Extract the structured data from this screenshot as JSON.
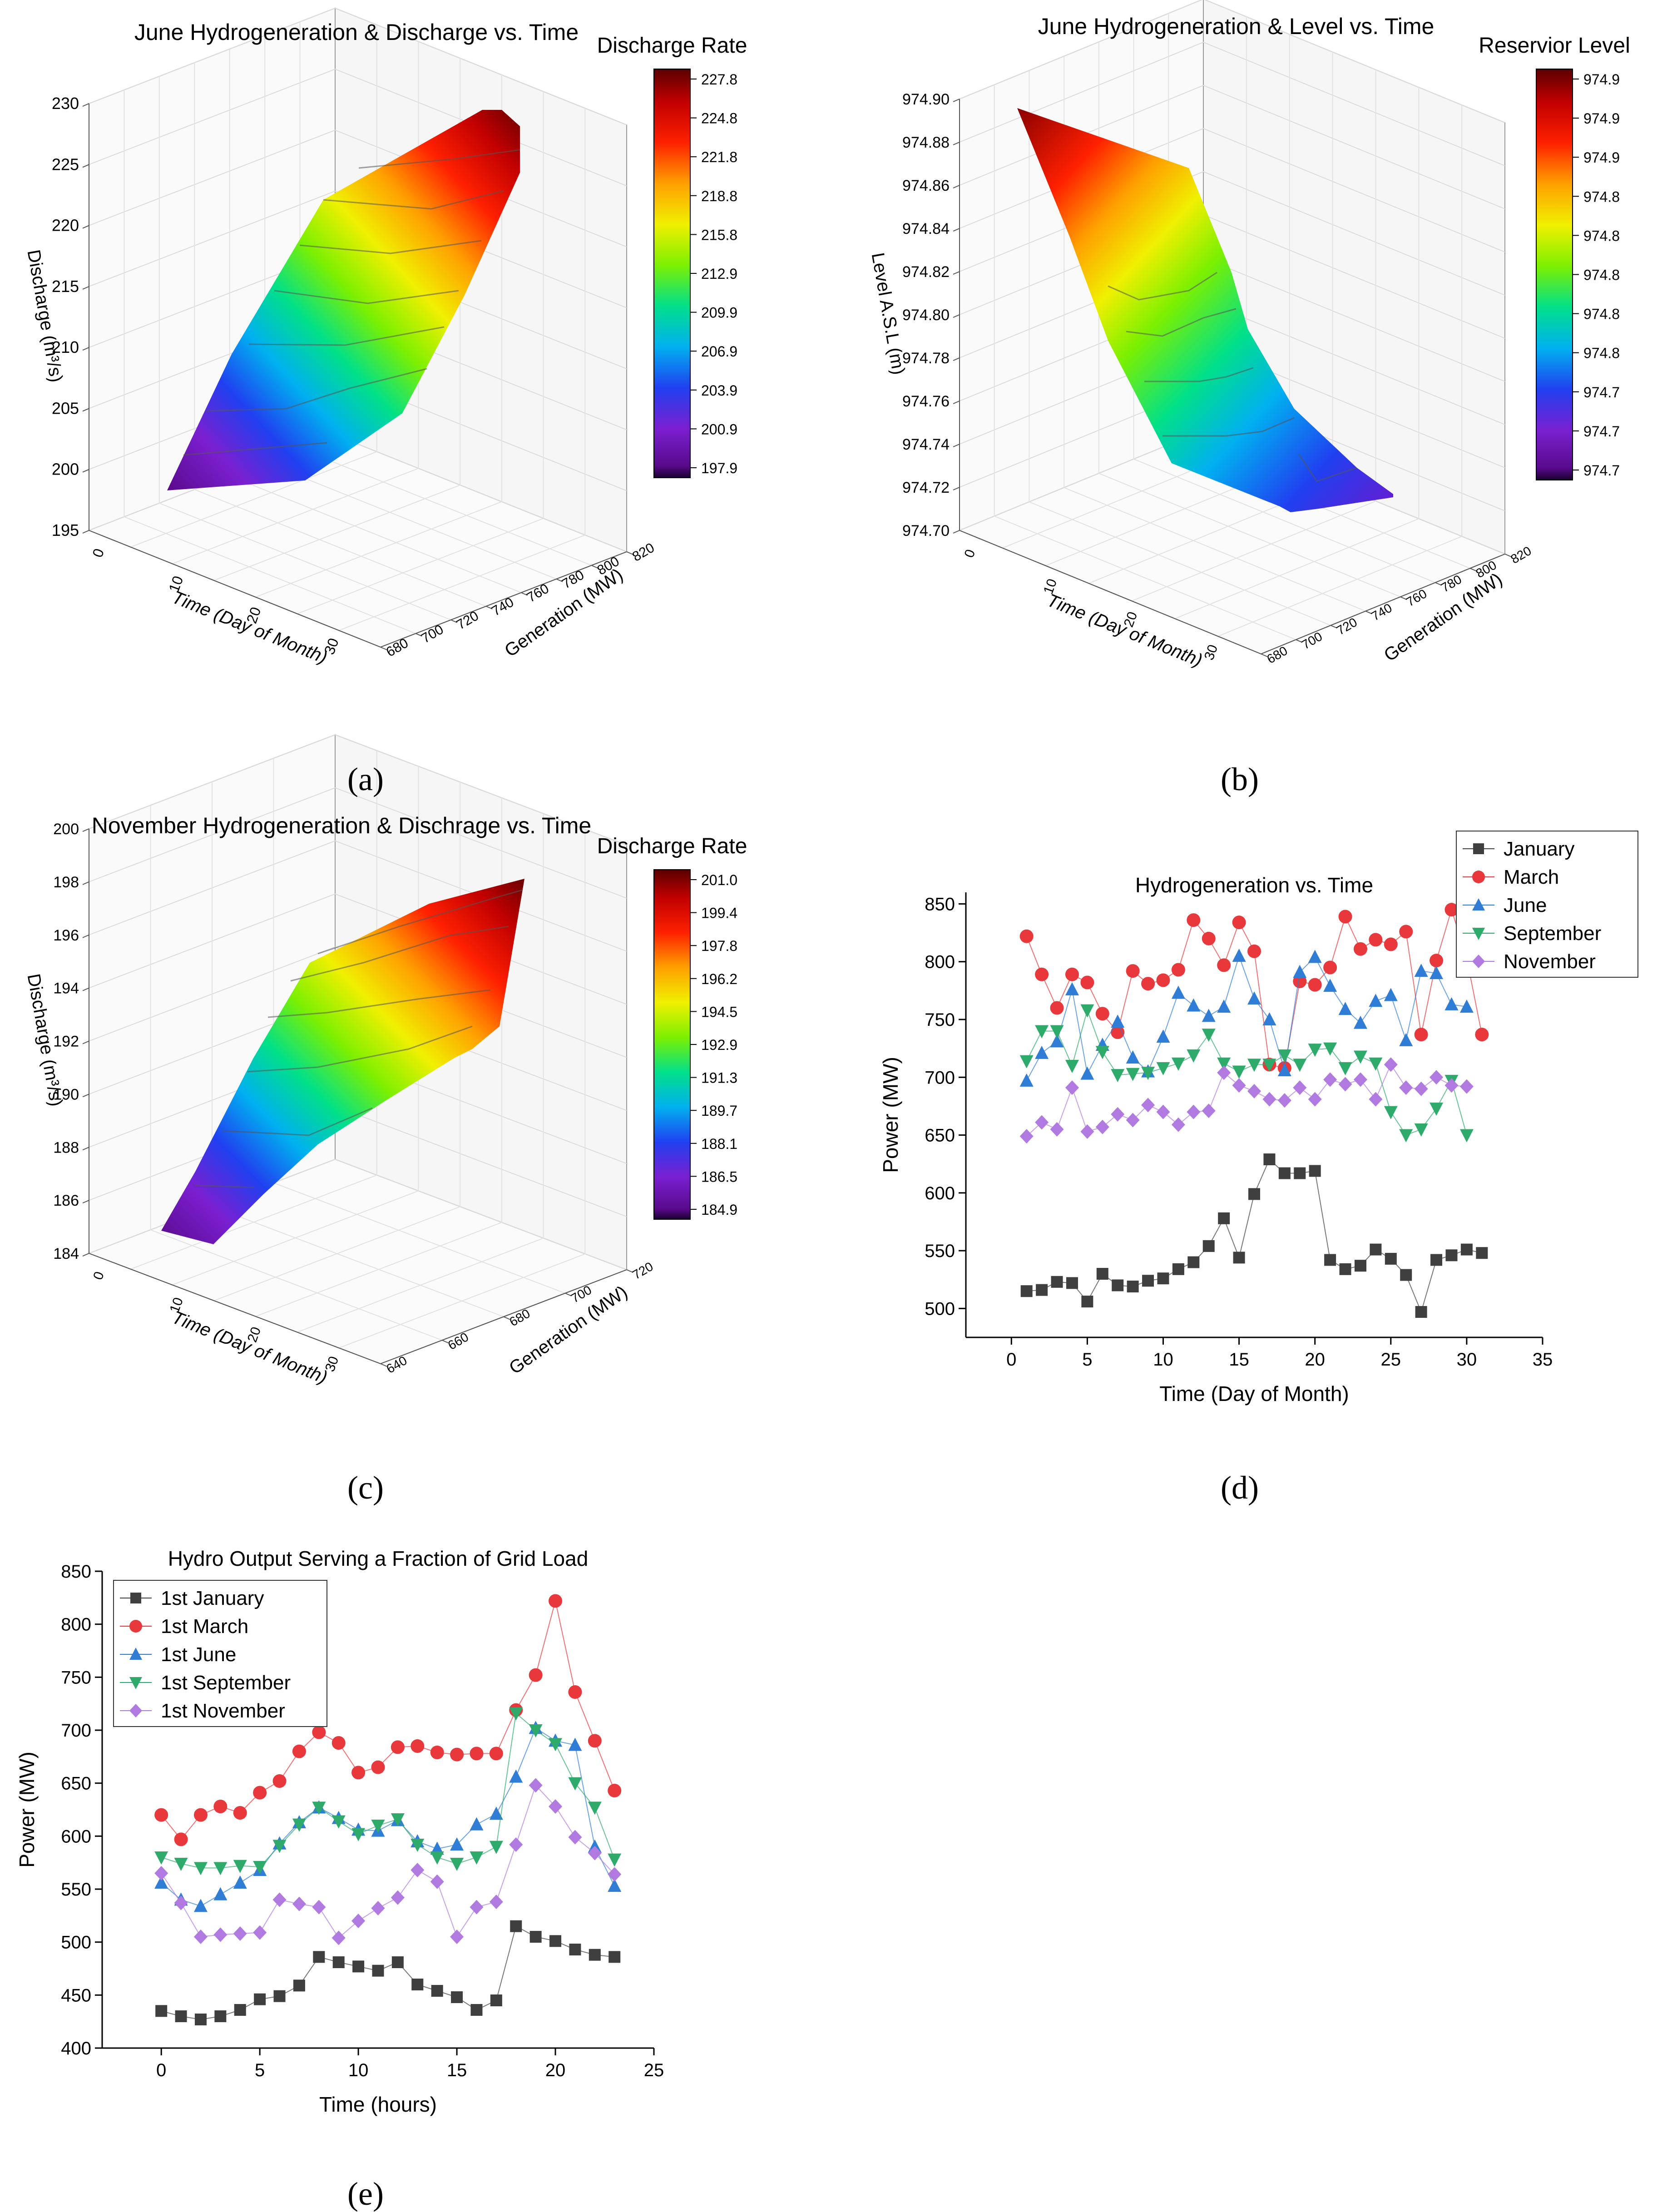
{
  "panels": {
    "a": {
      "caption": "(a)"
    },
    "b": {
      "caption": "(b)"
    },
    "c": {
      "caption": "(c)"
    },
    "d": {
      "caption": "(d)"
    },
    "e": {
      "caption": "(e)"
    }
  },
  "chart_data": [
    {
      "id": "a",
      "type": "surface3d",
      "title": "June Hydrogeneration & Discharge vs. Time",
      "xlabel": "Time (Day of Month)",
      "ylabel": "Generation (MW)",
      "zlabel": "Discharge (m³/s)",
      "x_ticks": [
        "0",
        "10",
        "20",
        "30"
      ],
      "y_ticks": [
        "680",
        "700",
        "720",
        "740",
        "760",
        "780",
        "800",
        "820"
      ],
      "z_ticks": [
        "195",
        "200",
        "205",
        "210",
        "215",
        "220",
        "225",
        "230"
      ],
      "zlim": [
        195,
        230
      ],
      "colorbar_title": "Discharge Rate",
      "colorbar_ticks": [
        "227.8",
        "224.8",
        "221.8",
        "218.8",
        "215.8",
        "212.9",
        "209.9",
        "206.9",
        "203.9",
        "200.9",
        "197.9"
      ]
    },
    {
      "id": "b",
      "type": "surface3d",
      "title": "June Hydrogeneration & Level vs. Time",
      "xlabel": "Time (Day of Month)",
      "ylabel": "Generation (MW)",
      "zlabel": "Level A.S.L (m)",
      "x_ticks": [
        "0",
        "10",
        "20",
        "30"
      ],
      "y_ticks": [
        "680",
        "700",
        "720",
        "740",
        "760",
        "780",
        "800",
        "820"
      ],
      "z_ticks": [
        "974.70",
        "974.72",
        "974.74",
        "974.76",
        "974.78",
        "974.80",
        "974.82",
        "974.84",
        "974.86",
        "974.88",
        "974.90"
      ],
      "zlim": [
        974.7,
        974.91
      ],
      "colorbar_title": "Reservior Level",
      "colorbar_ticks": [
        "974.9",
        "974.9",
        "974.9",
        "974.8",
        "974.8",
        "974.8",
        "974.8",
        "974.8",
        "974.7",
        "974.7",
        "974.7"
      ]
    },
    {
      "id": "c",
      "type": "surface3d",
      "title": "November Hydrogeneration & Dischrage vs. Time",
      "xlabel": "Time (Day of Month)",
      "ylabel": "Generation (MW)",
      "zlabel": "Discharge (m³/s)",
      "x_ticks": [
        "0",
        "10",
        "20",
        "30"
      ],
      "y_ticks": [
        "640",
        "660",
        "680",
        "700",
        "720"
      ],
      "z_ticks": [
        "184",
        "186",
        "188",
        "190",
        "192",
        "194",
        "196",
        "198",
        "200"
      ],
      "zlim": [
        184,
        201
      ],
      "colorbar_title": "Discharge Rate",
      "colorbar_ticks": [
        "201.0",
        "199.4",
        "197.8",
        "196.2",
        "194.5",
        "192.9",
        "191.3",
        "189.7",
        "188.1",
        "186.5",
        "184.9"
      ]
    },
    {
      "id": "d",
      "type": "line",
      "title": "Hydrogeneration vs. Time",
      "xlabel": "Time (Day of Month)",
      "ylabel": "Power (MW)",
      "xlim": [
        -3,
        35
      ],
      "ylim": [
        475,
        860
      ],
      "x_ticks": [
        0,
        5,
        10,
        15,
        20,
        25,
        30,
        35
      ],
      "y_ticks": [
        500,
        550,
        600,
        650,
        700,
        750,
        800,
        850
      ],
      "legend_position": "top-right",
      "x": [
        1,
        2,
        3,
        4,
        5,
        6,
        7,
        8,
        9,
        10,
        11,
        12,
        13,
        14,
        15,
        16,
        17,
        18,
        19,
        20,
        21,
        22,
        23,
        24,
        25,
        26,
        27,
        28,
        29,
        30,
        31
      ],
      "series": [
        {
          "name": "January",
          "color": "#3f3f3f",
          "marker": "square",
          "values": [
            515,
            516,
            523,
            522,
            506,
            530,
            520,
            519,
            524,
            526,
            534,
            540,
            554,
            578,
            544,
            599,
            629,
            617,
            617,
            619,
            542,
            534,
            537,
            551,
            543,
            529,
            497,
            542,
            546,
            551,
            548
          ]
        },
        {
          "name": "March",
          "color": "#e8383b",
          "marker": "circle",
          "values": [
            822,
            789,
            760,
            789,
            782,
            755,
            739,
            792,
            781,
            784,
            793,
            836,
            820,
            797,
            834,
            809,
            711,
            708,
            783,
            780,
            795,
            839,
            811,
            819,
            815,
            826,
            737,
            801,
            845,
            803,
            737
          ]
        },
        {
          "name": "June",
          "color": "#2f7dd4",
          "marker": "triangle-up",
          "values": [
            697,
            721,
            731,
            776,
            703,
            728,
            748,
            717,
            705,
            735,
            773,
            762,
            753,
            761,
            805,
            768,
            750,
            706,
            791,
            804,
            779,
            759,
            747,
            766,
            771,
            732,
            792,
            790,
            763,
            761,
            null
          ]
        },
        {
          "name": "September",
          "color": "#2eaa6b",
          "marker": "triangle-down",
          "values": [
            714,
            740,
            740,
            710,
            758,
            722,
            702,
            703,
            704,
            708,
            712,
            719,
            737,
            712,
            705,
            711,
            711,
            719,
            711,
            724,
            725,
            708,
            718,
            712,
            670,
            650,
            655,
            673,
            697,
            650,
            null
          ]
        },
        {
          "name": "November",
          "color": "#b07ae0",
          "marker": "diamond",
          "values": [
            649,
            661,
            655,
            691,
            653,
            657,
            668,
            663,
            676,
            670,
            659,
            670,
            671,
            704,
            693,
            688,
            681,
            680,
            691,
            681,
            698,
            694,
            698,
            681,
            711,
            691,
            690,
            700,
            693,
            692,
            null
          ]
        }
      ]
    },
    {
      "id": "e",
      "type": "line",
      "title": "Hydro Output Serving a Fraction of Grid Load",
      "xlabel": "Time (hours)",
      "ylabel": "Power (MW)",
      "xlim": [
        -3,
        25
      ],
      "ylim": [
        400,
        850
      ],
      "x_ticks": [
        0,
        5,
        10,
        15,
        20,
        25
      ],
      "y_ticks": [
        400,
        450,
        500,
        550,
        600,
        650,
        700,
        750,
        800,
        850
      ],
      "legend_position": "top-left",
      "x": [
        0,
        1,
        2,
        3,
        4,
        5,
        6,
        7,
        8,
        9,
        10,
        11,
        12,
        13,
        14,
        15,
        16,
        17,
        18,
        19,
        20,
        21,
        22,
        23
      ],
      "series": [
        {
          "name": "1st January",
          "color": "#3f3f3f",
          "marker": "square",
          "values": [
            435,
            430,
            427,
            430,
            436,
            446,
            449,
            459,
            486,
            481,
            477,
            473,
            481,
            460,
            454,
            448,
            436,
            445,
            515,
            505,
            501,
            493,
            488,
            486
          ]
        },
        {
          "name": "1st March",
          "color": "#e8383b",
          "marker": "circle",
          "values": [
            620,
            597,
            620,
            628,
            622,
            641,
            652,
            680,
            698,
            688,
            660,
            665,
            684,
            685,
            679,
            677,
            678,
            678,
            719,
            752,
            822,
            736,
            690,
            643
          ]
        },
        {
          "name": "1st June",
          "color": "#2f7dd4",
          "marker": "triangle-up",
          "values": [
            556,
            540,
            534,
            545,
            556,
            568,
            593,
            613,
            627,
            617,
            606,
            605,
            615,
            595,
            588,
            592,
            611,
            621,
            656,
            702,
            690,
            686,
            590,
            553
          ]
        },
        {
          "name": "1st September",
          "color": "#2eaa6b",
          "marker": "triangle-down",
          "values": [
            580,
            574,
            570,
            570,
            572,
            571,
            591,
            611,
            627,
            614,
            602,
            610,
            616,
            592,
            580,
            574,
            580,
            590,
            716,
            700,
            687,
            650,
            627,
            578
          ]
        },
        {
          "name": "1st November",
          "color": "#b07ae0",
          "marker": "diamond",
          "values": [
            565,
            537,
            505,
            507,
            508,
            509,
            540,
            536,
            533,
            504,
            520,
            532,
            542,
            568,
            557,
            505,
            533,
            538,
            592,
            648,
            628,
            599,
            584,
            564
          ]
        }
      ]
    }
  ]
}
